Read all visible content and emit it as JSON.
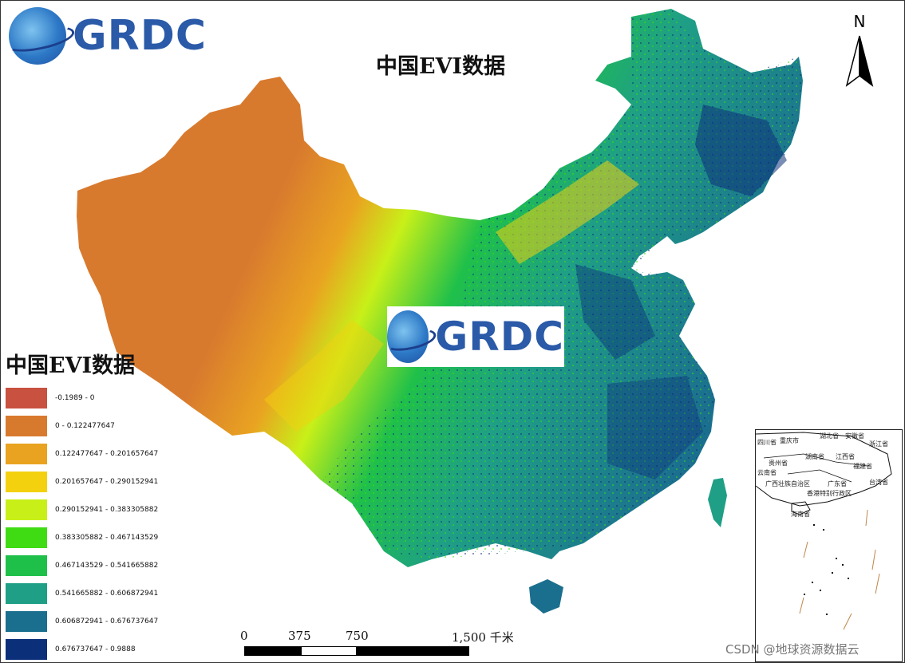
{
  "map": {
    "title": "中国EVI数据",
    "watermark": "CSDN @地球资源数据云"
  },
  "logos": {
    "brand_text": "GRDC"
  },
  "north_arrow": {
    "label": "N"
  },
  "legend": {
    "title": "中国EVI数据",
    "classes": [
      {
        "label": "-0.1989 - 0",
        "color": "#c8513f"
      },
      {
        "label": "0 - 0.122477647",
        "color": "#d87a2e"
      },
      {
        "label": "0.122477647 - 0.201657647",
        "color": "#e9a321"
      },
      {
        "label": "0.201657647 - 0.290152941",
        "color": "#f3d10f"
      },
      {
        "label": "0.290152941 - 0.383305882",
        "color": "#c8f018"
      },
      {
        "label": "0.383305882 - 0.467143529",
        "color": "#3fdc14"
      },
      {
        "label": "0.467143529 - 0.541665882",
        "color": "#1fc04a"
      },
      {
        "label": "0.541665882 - 0.606872941",
        "color": "#1f9f86"
      },
      {
        "label": "0.606872941 - 0.676737647",
        "color": "#1b6f8e"
      },
      {
        "label": "0.676737647 - 0.9888",
        "color": "#0c2f7a"
      }
    ]
  },
  "scale_bar": {
    "labels": [
      "0",
      "375",
      "750",
      "1,500 千米"
    ]
  },
  "inset": {
    "labels": [
      "四川省",
      "重庆市",
      "湖北省",
      "安徽省",
      "浙江省",
      "贵州省",
      "湖南省",
      "江西省",
      "福建省",
      "云南省",
      "广西壮族自治区",
      "广东省",
      "台湾省",
      "香港特别行政区",
      "海南省"
    ]
  }
}
